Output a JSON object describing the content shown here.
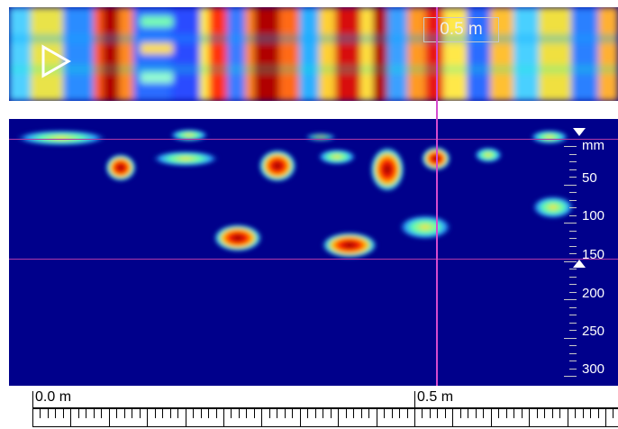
{
  "top_view": {
    "distance_label": "0.5 m",
    "play_icon": "play-triangle-icon"
  },
  "depth_scale": {
    "unit": "mm",
    "labels": [
      "50",
      "100",
      "150",
      "200",
      "250",
      "300"
    ],
    "upper_marker_icon": "down-triangle-icon",
    "lower_marker_icon": "up-triangle-icon"
  },
  "ruler": {
    "start_label": "0.0 m",
    "mid_label": "0.5 m"
  },
  "colors": {
    "background": "#00008b",
    "cursor_line": "#d54bd0",
    "depth_range_line": "#b03aa8"
  }
}
